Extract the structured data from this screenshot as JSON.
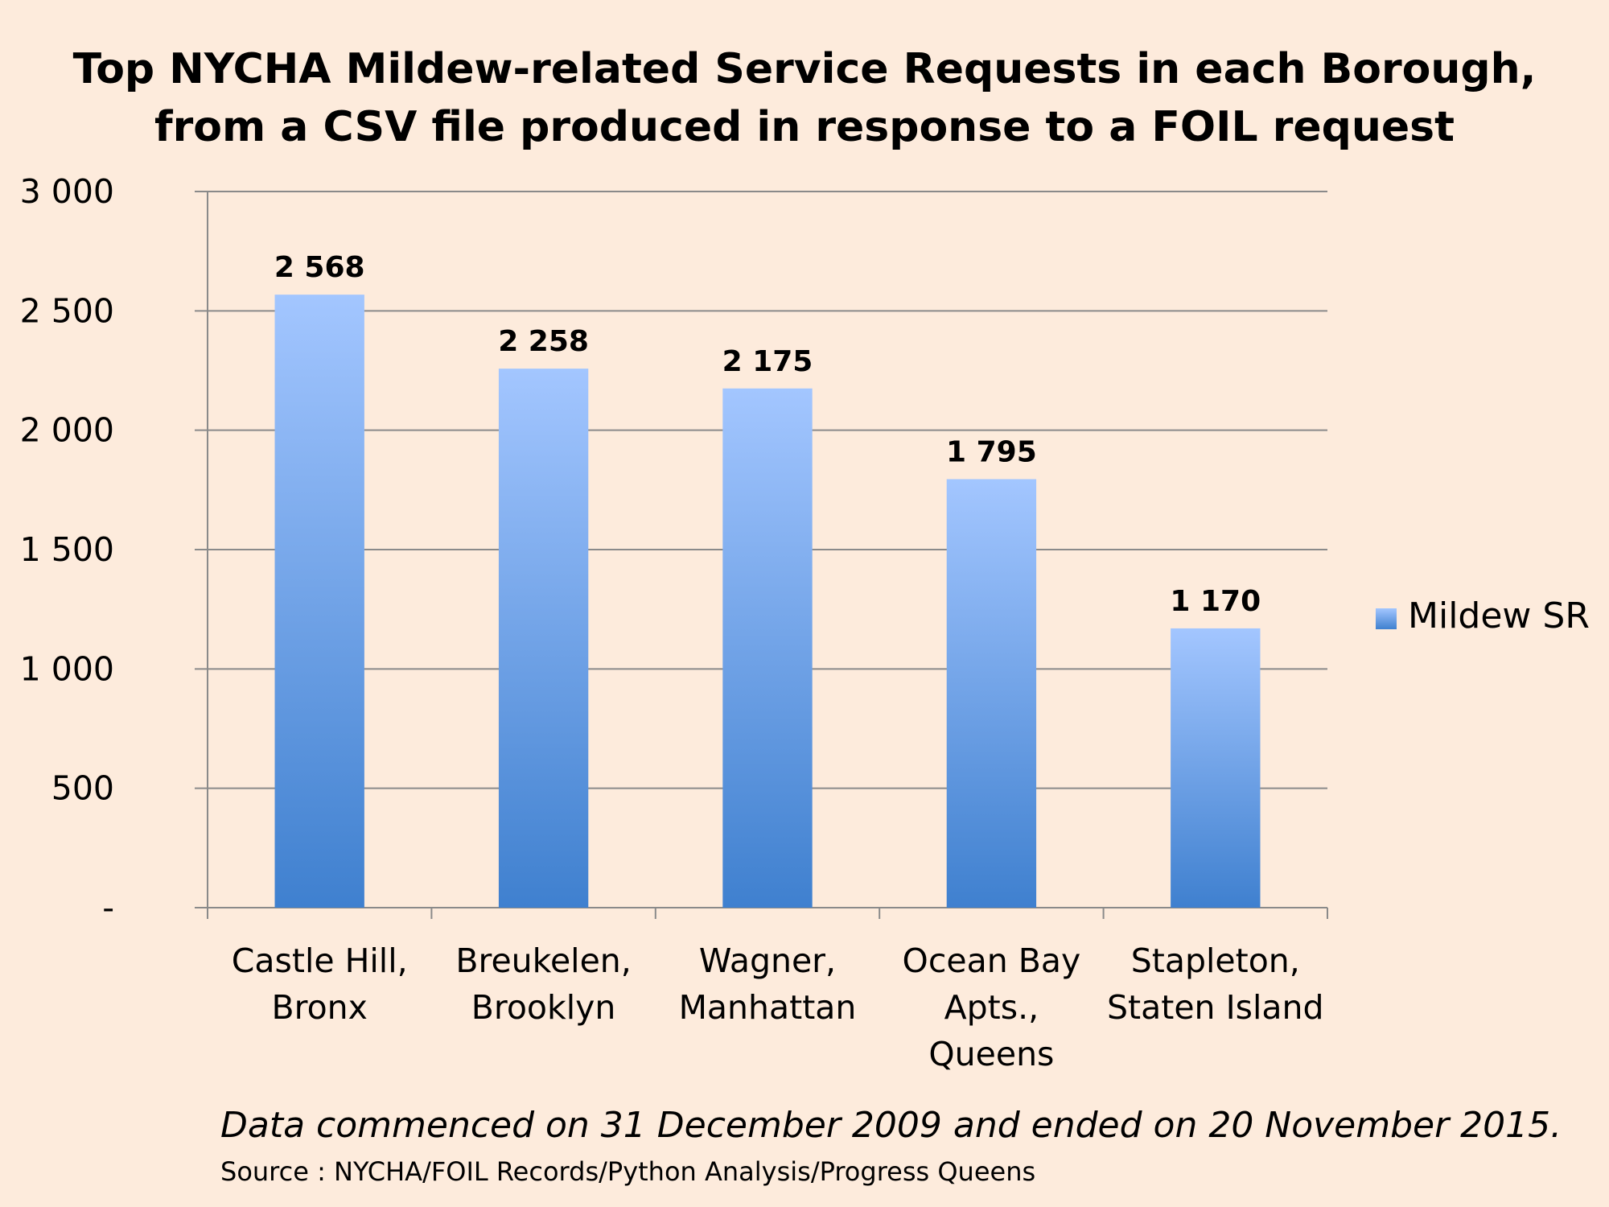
{
  "title_lines": [
    "Top NYCHA Mildew-related Service Requests in each Borough,",
    "from a CSV file produced in response to a FOIL request"
  ],
  "footer": {
    "note": "Data commenced on 31 December 2009 and ended on 20 November 2015.",
    "source": "Source : NYCHA/FOIL Records/Python Analysis/Progress Queens"
  },
  "chart_data": {
    "type": "bar",
    "title": "Top NYCHA Mildew-related Service Requests in each Borough, from a CSV file produced in response to a FOIL request",
    "categories": [
      [
        "Castle Hill,",
        "Bronx"
      ],
      [
        "Breukelen,",
        "Brooklyn"
      ],
      [
        "Wagner,",
        "Manhattan"
      ],
      [
        "Ocean Bay",
        "Apts.,",
        "Queens"
      ],
      [
        "Stapleton,",
        "Staten Island"
      ]
    ],
    "series": [
      {
        "name": "Mildew SR",
        "values": [
          2568,
          2258,
          2175,
          1795,
          1170
        ],
        "value_labels": [
          "2 568",
          "2 258",
          "2 175",
          "1 795",
          "1 170"
        ],
        "color_top": "#a3c6ff",
        "color_bottom": "#3f80cf"
      }
    ],
    "ylim": [
      0,
      3000
    ],
    "yticks": [
      0,
      500,
      1000,
      1500,
      2000,
      2500,
      3000
    ],
    "ytick_labels": [
      "-",
      "500",
      "1 000",
      "1 500",
      "2 000",
      "2 500",
      "3 000"
    ],
    "xlabel": "",
    "ylabel": "",
    "grid": true,
    "legend_position": "right",
    "grid_color": "#8a8a8a",
    "background": "#fdebdc"
  }
}
